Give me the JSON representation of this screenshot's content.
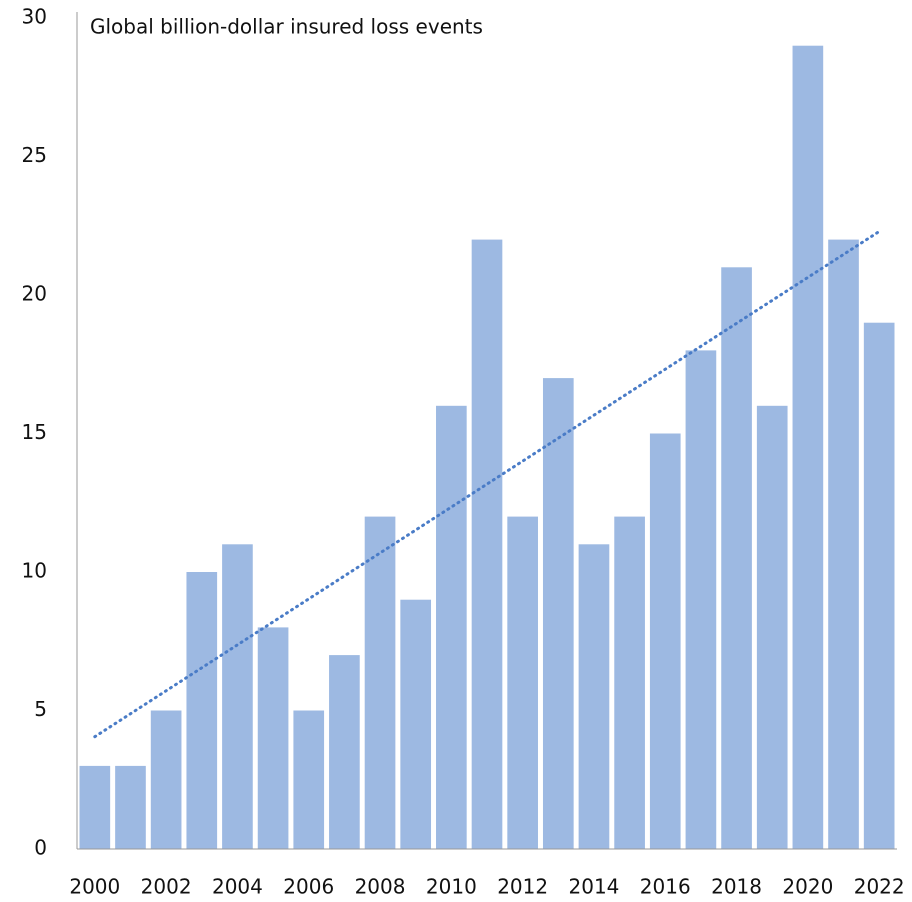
{
  "chart_data": {
    "type": "bar",
    "title": "Global billion-dollar insured loss events",
    "categories": [
      "2000",
      null,
      "2002",
      null,
      "2004",
      null,
      "2006",
      null,
      "2008",
      null,
      "2010",
      null,
      "2012",
      null,
      "2014",
      null,
      "2016",
      null,
      "2018",
      null,
      "2020",
      null,
      "2022"
    ],
    "values": [
      3,
      3,
      5,
      10,
      11,
      8,
      5,
      7,
      12,
      9,
      16,
      22,
      12,
      17,
      11,
      12,
      15,
      18,
      21,
      16,
      29,
      22,
      19
    ],
    "color": "#9db9e2",
    "trendline": true,
    "trendline_color": "#4a7cc7",
    "ylim": [
      0,
      30
    ],
    "yticks": [
      0,
      5,
      10,
      15,
      20,
      25,
      30
    ],
    "grid": false
  }
}
